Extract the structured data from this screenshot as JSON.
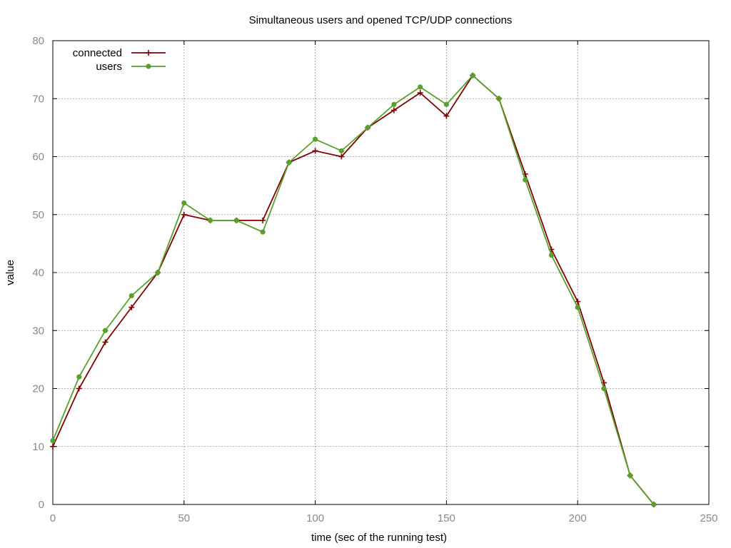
{
  "chart_data": {
    "type": "line",
    "title": "Simultaneous users and opened TCP/UDP connections",
    "xlabel": "time (sec of the running test)",
    "ylabel": "value",
    "xlim": [
      0,
      250
    ],
    "ylim": [
      0,
      80
    ],
    "x_ticks": [
      0,
      50,
      100,
      150,
      200,
      250
    ],
    "y_ticks": [
      0,
      10,
      20,
      30,
      40,
      50,
      60,
      70,
      80
    ],
    "grid": true,
    "legend_position": "top-left",
    "series": [
      {
        "name": "connected",
        "color": "#7f0000",
        "marker": "plus",
        "points": [
          [
            0,
            10
          ],
          [
            10,
            20
          ],
          [
            20,
            28
          ],
          [
            30,
            34
          ],
          [
            40,
            40
          ],
          [
            50,
            50
          ],
          [
            60,
            49
          ],
          [
            70,
            49
          ],
          [
            80,
            49
          ],
          [
            90,
            59
          ],
          [
            100,
            61
          ],
          [
            110,
            60
          ],
          [
            120,
            65
          ],
          [
            130,
            68
          ],
          [
            140,
            71
          ],
          [
            150,
            67
          ],
          [
            160,
            74
          ],
          [
            170,
            70
          ],
          [
            180,
            57
          ],
          [
            190,
            44
          ],
          [
            200,
            35
          ],
          [
            210,
            21
          ],
          [
            220,
            5
          ],
          [
            229,
            0
          ]
        ]
      },
      {
        "name": "users",
        "color": "#5aa02c",
        "marker": "dot",
        "points": [
          [
            0,
            11
          ],
          [
            10,
            22
          ],
          [
            20,
            30
          ],
          [
            30,
            36
          ],
          [
            40,
            40
          ],
          [
            50,
            52
          ],
          [
            60,
            49
          ],
          [
            70,
            49
          ],
          [
            80,
            47
          ],
          [
            90,
            59
          ],
          [
            100,
            63
          ],
          [
            110,
            61
          ],
          [
            120,
            65
          ],
          [
            130,
            69
          ],
          [
            140,
            72
          ],
          [
            150,
            69
          ],
          [
            160,
            74
          ],
          [
            170,
            70
          ],
          [
            180,
            56
          ],
          [
            190,
            43
          ],
          [
            200,
            34
          ],
          [
            210,
            20
          ],
          [
            220,
            5
          ],
          [
            229,
            0
          ]
        ]
      }
    ]
  }
}
